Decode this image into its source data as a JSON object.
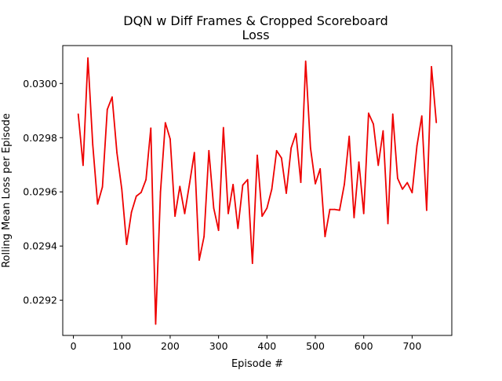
{
  "chart_data": {
    "type": "line",
    "title": "DQN w Diff Frames & Cropped Scoreboard",
    "subtitle": "Loss",
    "xlabel": "Episode #",
    "ylabel": "Rolling Mean Loss per Episode",
    "xlim": [
      -22,
      782
    ],
    "ylim": [
      0.02907,
      0.03014
    ],
    "xticks": [
      0,
      100,
      200,
      300,
      400,
      500,
      600,
      700
    ],
    "xtick_labels": [
      "0",
      "100",
      "200",
      "300",
      "400",
      "500",
      "600",
      "700"
    ],
    "yticks": [
      0.0292,
      0.0294,
      0.0296,
      0.0298,
      0.03
    ],
    "ytick_labels": [
      "0.0292",
      "0.0294",
      "0.0296",
      "0.0298",
      "0.0300"
    ],
    "grid": false,
    "series": [
      {
        "color": "#ee0000",
        "x": [
          10,
          20,
          30,
          40,
          50,
          60,
          70,
          80,
          90,
          100,
          110,
          120,
          130,
          140,
          150,
          160,
          170,
          180,
          190,
          200,
          210,
          220,
          230,
          240,
          250,
          260,
          270,
          280,
          290,
          300,
          310,
          320,
          330,
          340,
          350,
          360,
          370,
          380,
          390,
          400,
          410,
          420,
          430,
          440,
          450,
          460,
          470,
          480,
          490,
          500,
          510,
          520,
          530,
          540,
          550,
          560,
          570,
          580,
          590,
          600,
          610,
          620,
          630,
          640,
          650,
          660,
          670,
          680,
          690,
          700,
          710,
          720,
          730,
          740,
          750
        ],
        "y": [
          0.029887,
          0.029698,
          0.030094,
          0.029774,
          0.029555,
          0.029618,
          0.029904,
          0.02995,
          0.029744,
          0.02961,
          0.029406,
          0.029525,
          0.029584,
          0.029598,
          0.029645,
          0.029835,
          0.029112,
          0.0296,
          0.029855,
          0.029795,
          0.02951,
          0.02962,
          0.02952,
          0.02963,
          0.029745,
          0.029348,
          0.029435,
          0.029752,
          0.02954,
          0.029458,
          0.029837,
          0.02952,
          0.029627,
          0.029465,
          0.029625,
          0.029645,
          0.029336,
          0.029735,
          0.02951,
          0.02954,
          0.02961,
          0.029752,
          0.029725,
          0.029595,
          0.029762,
          0.029815,
          0.029635,
          0.030082,
          0.029762,
          0.02963,
          0.029685,
          0.029435,
          0.029535,
          0.029535,
          0.029532,
          0.029628,
          0.029805,
          0.029505,
          0.02971,
          0.02952,
          0.02989,
          0.02985,
          0.029698,
          0.029825,
          0.029483,
          0.029887,
          0.02965,
          0.02961,
          0.029634,
          0.029597,
          0.02977,
          0.02988,
          0.029532,
          0.030062,
          0.029856
        ]
      }
    ]
  }
}
